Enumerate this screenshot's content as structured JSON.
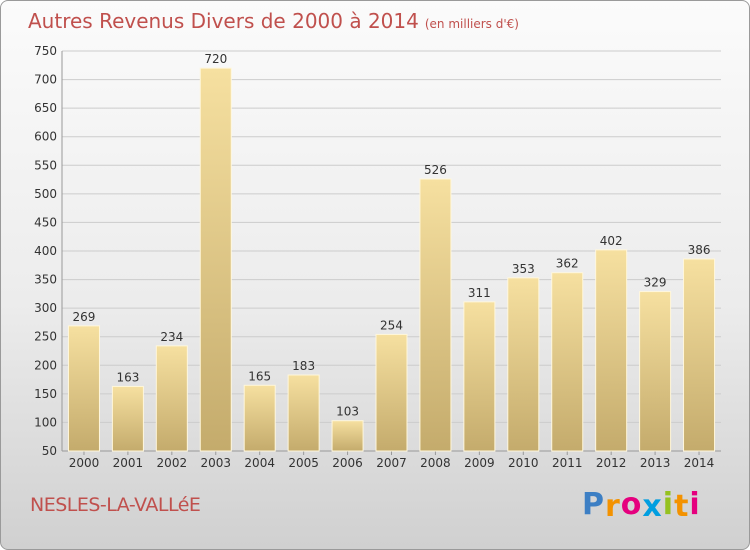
{
  "header": {
    "title": "Autres Revenus Divers de 2000 à 2014",
    "subtitle": "(en milliers d'€)"
  },
  "footer": {
    "place_name": "NESLES-LA-VALLéE",
    "brand_letters": [
      "P",
      "r",
      "o",
      "x",
      "i",
      "t",
      "i"
    ],
    "brand_colors": [
      "#3d7fc4",
      "#f39200",
      "#e5007e",
      "#009ee0",
      "#95c11f",
      "#f39200",
      "#e5007e"
    ]
  },
  "chart_data": {
    "type": "bar",
    "categories": [
      "2000",
      "2001",
      "2002",
      "2003",
      "2004",
      "2005",
      "2006",
      "2007",
      "2008",
      "2009",
      "2010",
      "2011",
      "2012",
      "2013",
      "2014"
    ],
    "values": [
      269,
      163,
      234,
      720,
      165,
      183,
      103,
      254,
      526,
      311,
      353,
      362,
      402,
      329,
      386
    ],
    "data_labels": [
      "269",
      "163",
      "234",
      "720",
      "165",
      "183",
      "103",
      "254",
      "526",
      "311",
      "353",
      "362",
      "402",
      "329",
      "386"
    ],
    "ylim": [
      50,
      750
    ],
    "yticks": [
      50,
      100,
      150,
      200,
      250,
      300,
      350,
      400,
      450,
      500,
      550,
      600,
      650,
      700,
      750
    ],
    "grid": true,
    "bar_colors": {
      "top": "#f6e0a0",
      "bottom": "#c4ab6c"
    },
    "grid_color": "#cccccc"
  }
}
